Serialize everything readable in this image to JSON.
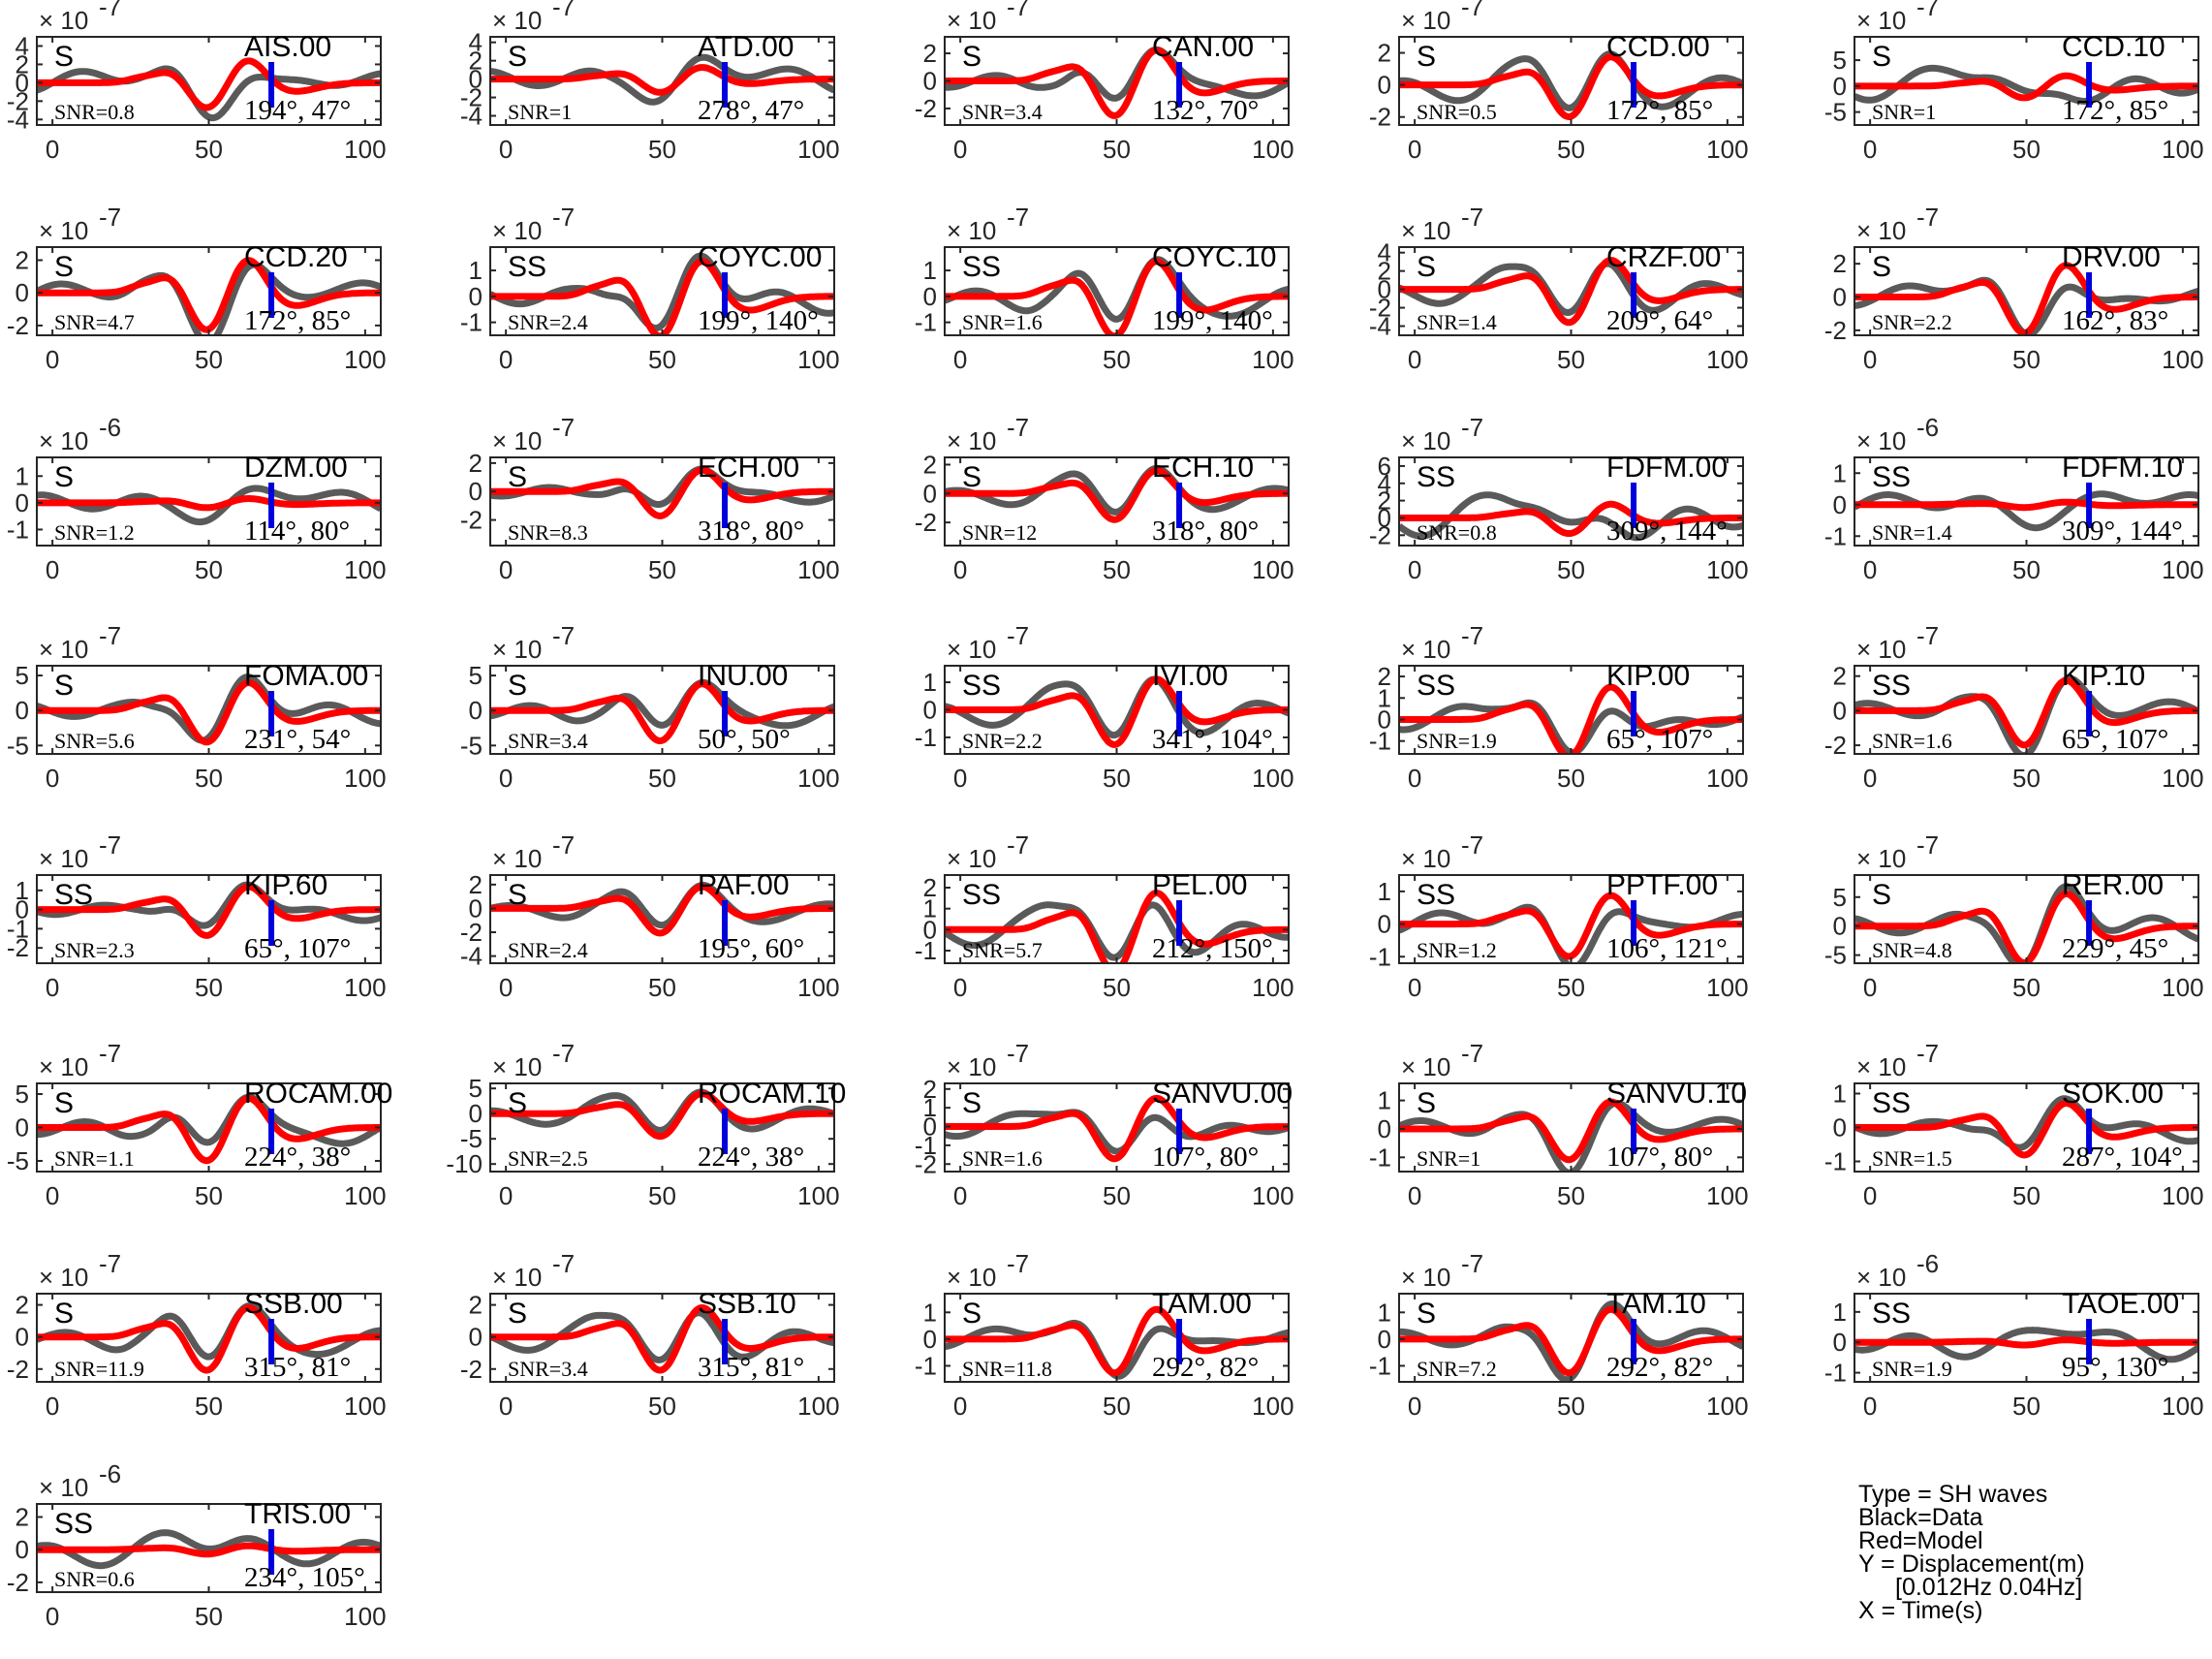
{
  "legend": {
    "type": "Type = SH waves",
    "black": "Black=Data",
    "red": "Red=Model",
    "ylabel": "Y = Displacement(m)",
    "band": "[0.012Hz 0.04Hz]",
    "xlabel": "X = Time(s)"
  },
  "colors": {
    "data": "#5a5a5a",
    "model": "#ff0000",
    "marker": "#0000dd"
  },
  "chart_data": [
    {
      "type": "line",
      "station": "AIS.00",
      "phase": "S",
      "snr": "SNR=0.8",
      "azimuth": "194°, 47°",
      "exponent": "-7",
      "yticks": [
        -4,
        -2,
        0,
        2,
        4
      ],
      "ylim": [
        -4.6,
        5
      ],
      "xticks": [
        0,
        50,
        100
      ],
      "xlim": [
        -5,
        105
      ],
      "marker_x": 70,
      "model_peak": 3.0,
      "data_peak": 4.5
    },
    {
      "type": "line",
      "station": "ATD.00",
      "phase": "S",
      "snr": "SNR=1",
      "azimuth": "278°, 47°",
      "exponent": "-7",
      "yticks": [
        -4,
        -2,
        0,
        2,
        4
      ],
      "ylim": [
        -5,
        4.6
      ],
      "xticks": [
        0,
        50,
        100
      ],
      "xlim": [
        -5,
        105
      ],
      "marker_x": 70,
      "model_peak": 1.6,
      "data_peak": 4.2
    },
    {
      "type": "line",
      "station": "CAN.00",
      "phase": "S",
      "snr": "SNR=3.4",
      "azimuth": "132°, 70°",
      "exponent": "-7",
      "yticks": [
        -2,
        0,
        2
      ],
      "ylim": [
        -3.2,
        3.2
      ],
      "xticks": [
        0,
        50,
        100
      ],
      "xlim": [
        -5,
        105
      ],
      "marker_x": 70,
      "model_peak": 2.8,
      "data_peak": 2.6
    },
    {
      "type": "line",
      "station": "CCD.00",
      "phase": "S",
      "snr": "SNR=0.5",
      "azimuth": "172°, 85°",
      "exponent": "-7",
      "yticks": [
        -2,
        0,
        2
      ],
      "ylim": [
        -2.5,
        3
      ],
      "xticks": [
        0,
        50,
        100
      ],
      "xlim": [
        -5,
        105
      ],
      "marker_x": 70,
      "model_peak": 2.2,
      "data_peak": 2.4
    },
    {
      "type": "line",
      "station": "CCD.10",
      "phase": "S",
      "snr": "SNR=1",
      "azimuth": "172°, 85°",
      "exponent": "-7",
      "yticks": [
        -5,
        0,
        5
      ],
      "ylim": [
        -7.5,
        9.5
      ],
      "xticks": [
        0,
        50,
        100
      ],
      "xlim": [
        -5,
        105
      ],
      "marker_x": 70,
      "model_peak": 2.5,
      "data_peak": 9
    },
    {
      "type": "line",
      "station": "CCD.20",
      "phase": "S",
      "snr": "SNR=4.7",
      "azimuth": "172°, 85°",
      "exponent": "-7",
      "yticks": [
        -2,
        0,
        2
      ],
      "ylim": [
        -2.6,
        2.8
      ],
      "xticks": [
        0,
        50,
        100
      ],
      "xlim": [
        -5,
        105
      ],
      "marker_x": 70,
      "model_peak": 2.5,
      "data_peak": 2.4
    },
    {
      "type": "line",
      "station": "COYC.00",
      "phase": "SS",
      "snr": "SNR=2.4",
      "azimuth": "199°, 140°",
      "exponent": "-7",
      "yticks": [
        -1,
        0,
        1
      ],
      "ylim": [
        -1.5,
        1.9
      ],
      "xticks": [
        0,
        50,
        100
      ],
      "xlim": [
        -5,
        105
      ],
      "marker_x": 70,
      "model_peak": 1.7,
      "data_peak": 1.6
    },
    {
      "type": "line",
      "station": "COYC.10",
      "phase": "SS",
      "snr": "SNR=1.6",
      "azimuth": "199°, 140°",
      "exponent": "-7",
      "yticks": [
        -1,
        0,
        1
      ],
      "ylim": [
        -1.5,
        1.9
      ],
      "xticks": [
        0,
        50,
        100
      ],
      "xlim": [
        -5,
        105
      ],
      "marker_x": 70,
      "model_peak": 1.7,
      "data_peak": 1.6
    },
    {
      "type": "line",
      "station": "CRZF.00",
      "phase": "S",
      "snr": "SNR=1.4",
      "azimuth": "209°, 64°",
      "exponent": "-7",
      "yticks": [
        -4,
        -2,
        0,
        2,
        4
      ],
      "ylim": [
        -5,
        4.6
      ],
      "xticks": [
        0,
        50,
        100
      ],
      "xlim": [
        -5,
        105
      ],
      "marker_x": 70,
      "model_peak": 4.0,
      "data_peak": 4.0
    },
    {
      "type": "line",
      "station": "DRV.00",
      "phase": "S",
      "snr": "SNR=2.2",
      "azimuth": "162°, 83°",
      "exponent": "-7",
      "yticks": [
        -2,
        0,
        2
      ],
      "ylim": [
        -2.3,
        3
      ],
      "xticks": [
        0,
        50,
        100
      ],
      "xlim": [
        -5,
        105
      ],
      "marker_x": 70,
      "model_peak": 2.4,
      "data_peak": 2.2
    },
    {
      "type": "line",
      "station": "DZM.00",
      "phase": "S",
      "snr": "SNR=1.2",
      "azimuth": "114°, 80°",
      "exponent": "-6",
      "yticks": [
        -1,
        0,
        1
      ],
      "ylim": [
        -1.6,
        1.7
      ],
      "xticks": [
        0,
        50,
        100
      ],
      "xlim": [
        -5,
        105
      ],
      "marker_x": 70,
      "model_peak": 0.2,
      "data_peak": 1.4
    },
    {
      "type": "line",
      "station": "ECH.00",
      "phase": "S",
      "snr": "SNR=8.3",
      "azimuth": "318°, 80°",
      "exponent": "-7",
      "yticks": [
        -2,
        0,
        2
      ],
      "ylim": [
        -3.8,
        2.4
      ],
      "xticks": [
        0,
        50,
        100
      ],
      "xlim": [
        -5,
        105
      ],
      "marker_x": 70,
      "model_peak": 1.9,
      "data_peak": 1.8
    },
    {
      "type": "line",
      "station": "ECH.10",
      "phase": "S",
      "snr": "SNR=12",
      "azimuth": "318°, 80°",
      "exponent": "-7",
      "yticks": [
        -2,
        0,
        2
      ],
      "ylim": [
        -3.6,
        2.5
      ],
      "xticks": [
        0,
        50,
        100
      ],
      "xlim": [
        -5,
        105
      ],
      "marker_x": 70,
      "model_peak": 2.0,
      "data_peak": 1.9
    },
    {
      "type": "line",
      "station": "FDFM.00",
      "phase": "SS",
      "snr": "SNR=0.8",
      "azimuth": "309°, 144°",
      "exponent": "-7",
      "yticks": [
        -2,
        0,
        2,
        4,
        6
      ],
      "ylim": [
        -3.2,
        7
      ],
      "xticks": [
        0,
        50,
        100
      ],
      "xlim": [
        -5,
        105
      ],
      "marker_x": 70,
      "model_peak": 2.0,
      "data_peak": 6.4
    },
    {
      "type": "line",
      "station": "FDFM.10",
      "phase": "SS",
      "snr": "SNR=1.4",
      "azimuth": "309°, 144°",
      "exponent": "-6",
      "yticks": [
        -1,
        0,
        1
      ],
      "ylim": [
        -1.3,
        1.5
      ],
      "xticks": [
        0,
        50,
        100
      ],
      "xlim": [
        -5,
        105
      ],
      "marker_x": 70,
      "model_peak": 0.1,
      "data_peak": 1.3
    },
    {
      "type": "line",
      "station": "FOMA.00",
      "phase": "S",
      "snr": "SNR=5.6",
      "azimuth": "231°, 54°",
      "exponent": "-7",
      "yticks": [
        -5,
        0,
        5
      ],
      "ylim": [
        -6.2,
        6.4
      ],
      "xticks": [
        0,
        50,
        100
      ],
      "xlim": [
        -5,
        105
      ],
      "marker_x": 70,
      "model_peak": 5.0,
      "data_peak": 4.8
    },
    {
      "type": "line",
      "station": "INU.00",
      "phase": "S",
      "snr": "SNR=3.4",
      "azimuth": "50°, 50°",
      "exponent": "-7",
      "yticks": [
        -5,
        0,
        5
      ],
      "ylim": [
        -6.2,
        6.4
      ],
      "xticks": [
        0,
        50,
        100
      ],
      "xlim": [
        -5,
        105
      ],
      "marker_x": 70,
      "model_peak": 4.8,
      "data_peak": 5
    },
    {
      "type": "line",
      "station": "IVI.00",
      "phase": "SS",
      "snr": "SNR=2.2",
      "azimuth": "341°, 104°",
      "exponent": "-7",
      "yticks": [
        -1,
        0,
        1
      ],
      "ylim": [
        -1.6,
        1.6
      ],
      "xticks": [
        0,
        50,
        100
      ],
      "xlim": [
        -5,
        105
      ],
      "marker_x": 70,
      "model_peak": 1.4,
      "data_peak": 1.4
    },
    {
      "type": "line",
      "station": "KIP.00",
      "phase": "SS",
      "snr": "SNR=1.9",
      "azimuth": "65°, 107°",
      "exponent": "-7",
      "yticks": [
        -1,
        0,
        1,
        2
      ],
      "ylim": [
        -1.6,
        2.5
      ],
      "xticks": [
        0,
        50,
        100
      ],
      "xlim": [
        -5,
        105
      ],
      "marker_x": 70,
      "model_peak": 1.9,
      "data_peak": 1.8
    },
    {
      "type": "line",
      "station": "KIP.10",
      "phase": "SS",
      "snr": "SNR=1.6",
      "azimuth": "65°, 107°",
      "exponent": "-7",
      "yticks": [
        -2,
        0,
        2
      ],
      "ylim": [
        -2.5,
        2.6
      ],
      "xticks": [
        0,
        50,
        100
      ],
      "xlim": [
        -5,
        105
      ],
      "marker_x": 70,
      "model_peak": 2.2,
      "data_peak": 2.0
    },
    {
      "type": "line",
      "station": "KIP.60",
      "phase": "SS",
      "snr": "SNR=2.3",
      "azimuth": "65°, 107°",
      "exponent": "-7",
      "yticks": [
        -2,
        -1,
        0,
        1
      ],
      "ylim": [
        -2.8,
        1.8
      ],
      "xticks": [
        0,
        50,
        100
      ],
      "xlim": [
        -5,
        105
      ],
      "marker_x": 70,
      "model_peak": 1.5,
      "data_peak": 1.4
    },
    {
      "type": "line",
      "station": "PAF.00",
      "phase": "S",
      "snr": "SNR=2.4",
      "azimuth": "195°, 60°",
      "exponent": "-7",
      "yticks": [
        -4,
        -2,
        0,
        2
      ],
      "ylim": [
        -4.6,
        2.8
      ],
      "xticks": [
        0,
        50,
        100
      ],
      "xlim": [
        -5,
        105
      ],
      "marker_x": 70,
      "model_peak": 2.3,
      "data_peak": 2.0
    },
    {
      "type": "line",
      "station": "PEL.00",
      "phase": "SS",
      "snr": "SNR=5.7",
      "azimuth": "212°, 150°",
      "exponent": "-7",
      "yticks": [
        -1,
        0,
        1,
        2
      ],
      "ylim": [
        -1.6,
        2.6
      ],
      "xticks": [
        0,
        50,
        100
      ],
      "xlim": [
        -5,
        105
      ],
      "marker_x": 70,
      "model_peak": 2.2,
      "data_peak": 2.1
    },
    {
      "type": "line",
      "station": "PPTF.00",
      "phase": "SS",
      "snr": "SNR=1.2",
      "azimuth": "106°, 121°",
      "exponent": "-7",
      "yticks": [
        -1,
        0,
        1
      ],
      "ylim": [
        -1.2,
        1.5
      ],
      "xticks": [
        0,
        50,
        100
      ],
      "xlim": [
        -5,
        105
      ],
      "marker_x": 70,
      "model_peak": 1.1,
      "data_peak": 1.3
    },
    {
      "type": "line",
      "station": "RER.00",
      "phase": "S",
      "snr": "SNR=4.8",
      "azimuth": "229°, 45°",
      "exponent": "-7",
      "yticks": [
        -5,
        0,
        5
      ],
      "ylim": [
        -6.4,
        8.8
      ],
      "xticks": [
        0,
        50,
        100
      ],
      "xlim": [
        -5,
        105
      ],
      "marker_x": 70,
      "model_peak": 7.0,
      "data_peak": 6.8
    },
    {
      "type": "line",
      "station": "ROCAM.00",
      "phase": "S",
      "snr": "SNR=1.1",
      "azimuth": "224°, 38°",
      "exponent": "-7",
      "yticks": [
        -5,
        0,
        5
      ],
      "ylim": [
        -6.6,
        6.6
      ],
      "xticks": [
        0,
        50,
        100
      ],
      "xlim": [
        -5,
        105
      ],
      "marker_x": 70,
      "model_peak": 5.5,
      "data_peak": 5.8
    },
    {
      "type": "line",
      "station": "ROCAM.10",
      "phase": "S",
      "snr": "SNR=2.5",
      "azimuth": "224°, 38°",
      "exponent": "-7",
      "yticks": [
        -10,
        -5,
        0,
        5
      ],
      "ylim": [
        -11.5,
        6
      ],
      "xticks": [
        0,
        50,
        100
      ],
      "xlim": [
        -5,
        105
      ],
      "marker_x": 70,
      "model_peak": 5.0,
      "data_peak": 5.2
    },
    {
      "type": "line",
      "station": "SANVU.00",
      "phase": "S",
      "snr": "SNR=1.6",
      "azimuth": "107°, 80°",
      "exponent": "-7",
      "yticks": [
        -2,
        -1,
        0,
        1,
        2
      ],
      "ylim": [
        -2.4,
        2.3
      ],
      "xticks": [
        0,
        50,
        100
      ],
      "xlim": [
        -5,
        105
      ],
      "marker_x": 70,
      "model_peak": 1.9,
      "data_peak": 1.8
    },
    {
      "type": "line",
      "station": "SANVU.10",
      "phase": "S",
      "snr": "SNR=1",
      "azimuth": "107°, 80°",
      "exponent": "-7",
      "yticks": [
        -1,
        0,
        1
      ],
      "ylim": [
        -1.5,
        1.6
      ],
      "xticks": [
        0,
        50,
        100
      ],
      "xlim": [
        -5,
        105
      ],
      "marker_x": 70,
      "model_peak": 1.2,
      "data_peak": 1.3
    },
    {
      "type": "line",
      "station": "SOK.00",
      "phase": "SS",
      "snr": "SNR=1.5",
      "azimuth": "287°, 104°",
      "exponent": "-7",
      "yticks": [
        -1,
        0,
        1
      ],
      "ylim": [
        -1.3,
        1.3
      ],
      "xticks": [
        0,
        50,
        100
      ],
      "xlim": [
        -5,
        105
      ],
      "marker_x": 70,
      "model_peak": 0.9,
      "data_peak": 1.0
    },
    {
      "type": "line",
      "station": "SSB.00",
      "phase": "S",
      "snr": "SNR=11.9",
      "azimuth": "315°, 81°",
      "exponent": "-7",
      "yticks": [
        -2,
        0,
        2
      ],
      "ylim": [
        -2.8,
        2.7
      ],
      "xticks": [
        0,
        50,
        100
      ],
      "xlim": [
        -5,
        105
      ],
      "marker_x": 70,
      "model_peak": 2.3,
      "data_peak": 2.2
    },
    {
      "type": "line",
      "station": "SSB.10",
      "phase": "S",
      "snr": "SNR=3.4",
      "azimuth": "315°, 81°",
      "exponent": "-7",
      "yticks": [
        -2,
        0,
        2
      ],
      "ylim": [
        -2.8,
        2.7
      ],
      "xticks": [
        0,
        50,
        100
      ],
      "xlim": [
        -5,
        105
      ],
      "marker_x": 70,
      "model_peak": 2.3,
      "data_peak": 2.2
    },
    {
      "type": "line",
      "station": "TAM.00",
      "phase": "S",
      "snr": "SNR=11.8",
      "azimuth": "292°, 82°",
      "exponent": "-7",
      "yticks": [
        -1,
        0,
        1
      ],
      "ylim": [
        -1.6,
        1.7
      ],
      "xticks": [
        0,
        50,
        100
      ],
      "xlim": [
        -5,
        105
      ],
      "marker_x": 70,
      "model_peak": 1.4,
      "data_peak": 1.3
    },
    {
      "type": "line",
      "station": "TAM.10",
      "phase": "S",
      "snr": "SNR=7.2",
      "azimuth": "292°, 82°",
      "exponent": "-7",
      "yticks": [
        -1,
        0,
        1
      ],
      "ylim": [
        -1.6,
        1.7
      ],
      "xticks": [
        0,
        50,
        100
      ],
      "xlim": [
        -5,
        105
      ],
      "marker_x": 70,
      "model_peak": 1.4,
      "data_peak": 1.3
    },
    {
      "type": "line",
      "station": "TAOE.00",
      "phase": "SS",
      "snr": "SNR=1.9",
      "azimuth": "95°, 130°",
      "exponent": "-6",
      "yticks": [
        -1,
        0,
        1
      ],
      "ylim": [
        -1.3,
        1.6
      ],
      "xticks": [
        0,
        50,
        100
      ],
      "xlim": [
        -5,
        105
      ],
      "marker_x": 70,
      "model_peak": 0.1,
      "data_peak": 1.4
    },
    {
      "type": "line",
      "station": "TRIS.00",
      "phase": "SS",
      "snr": "SNR=0.6",
      "azimuth": "234°, 105°",
      "exponent": "-6",
      "yticks": [
        -2,
        0,
        2
      ],
      "ylim": [
        -2.6,
        2.8
      ],
      "xticks": [
        0,
        50,
        100
      ],
      "xlim": [
        -5,
        105
      ],
      "marker_x": 70,
      "model_peak": 0.3,
      "data_peak": 2.4
    }
  ]
}
